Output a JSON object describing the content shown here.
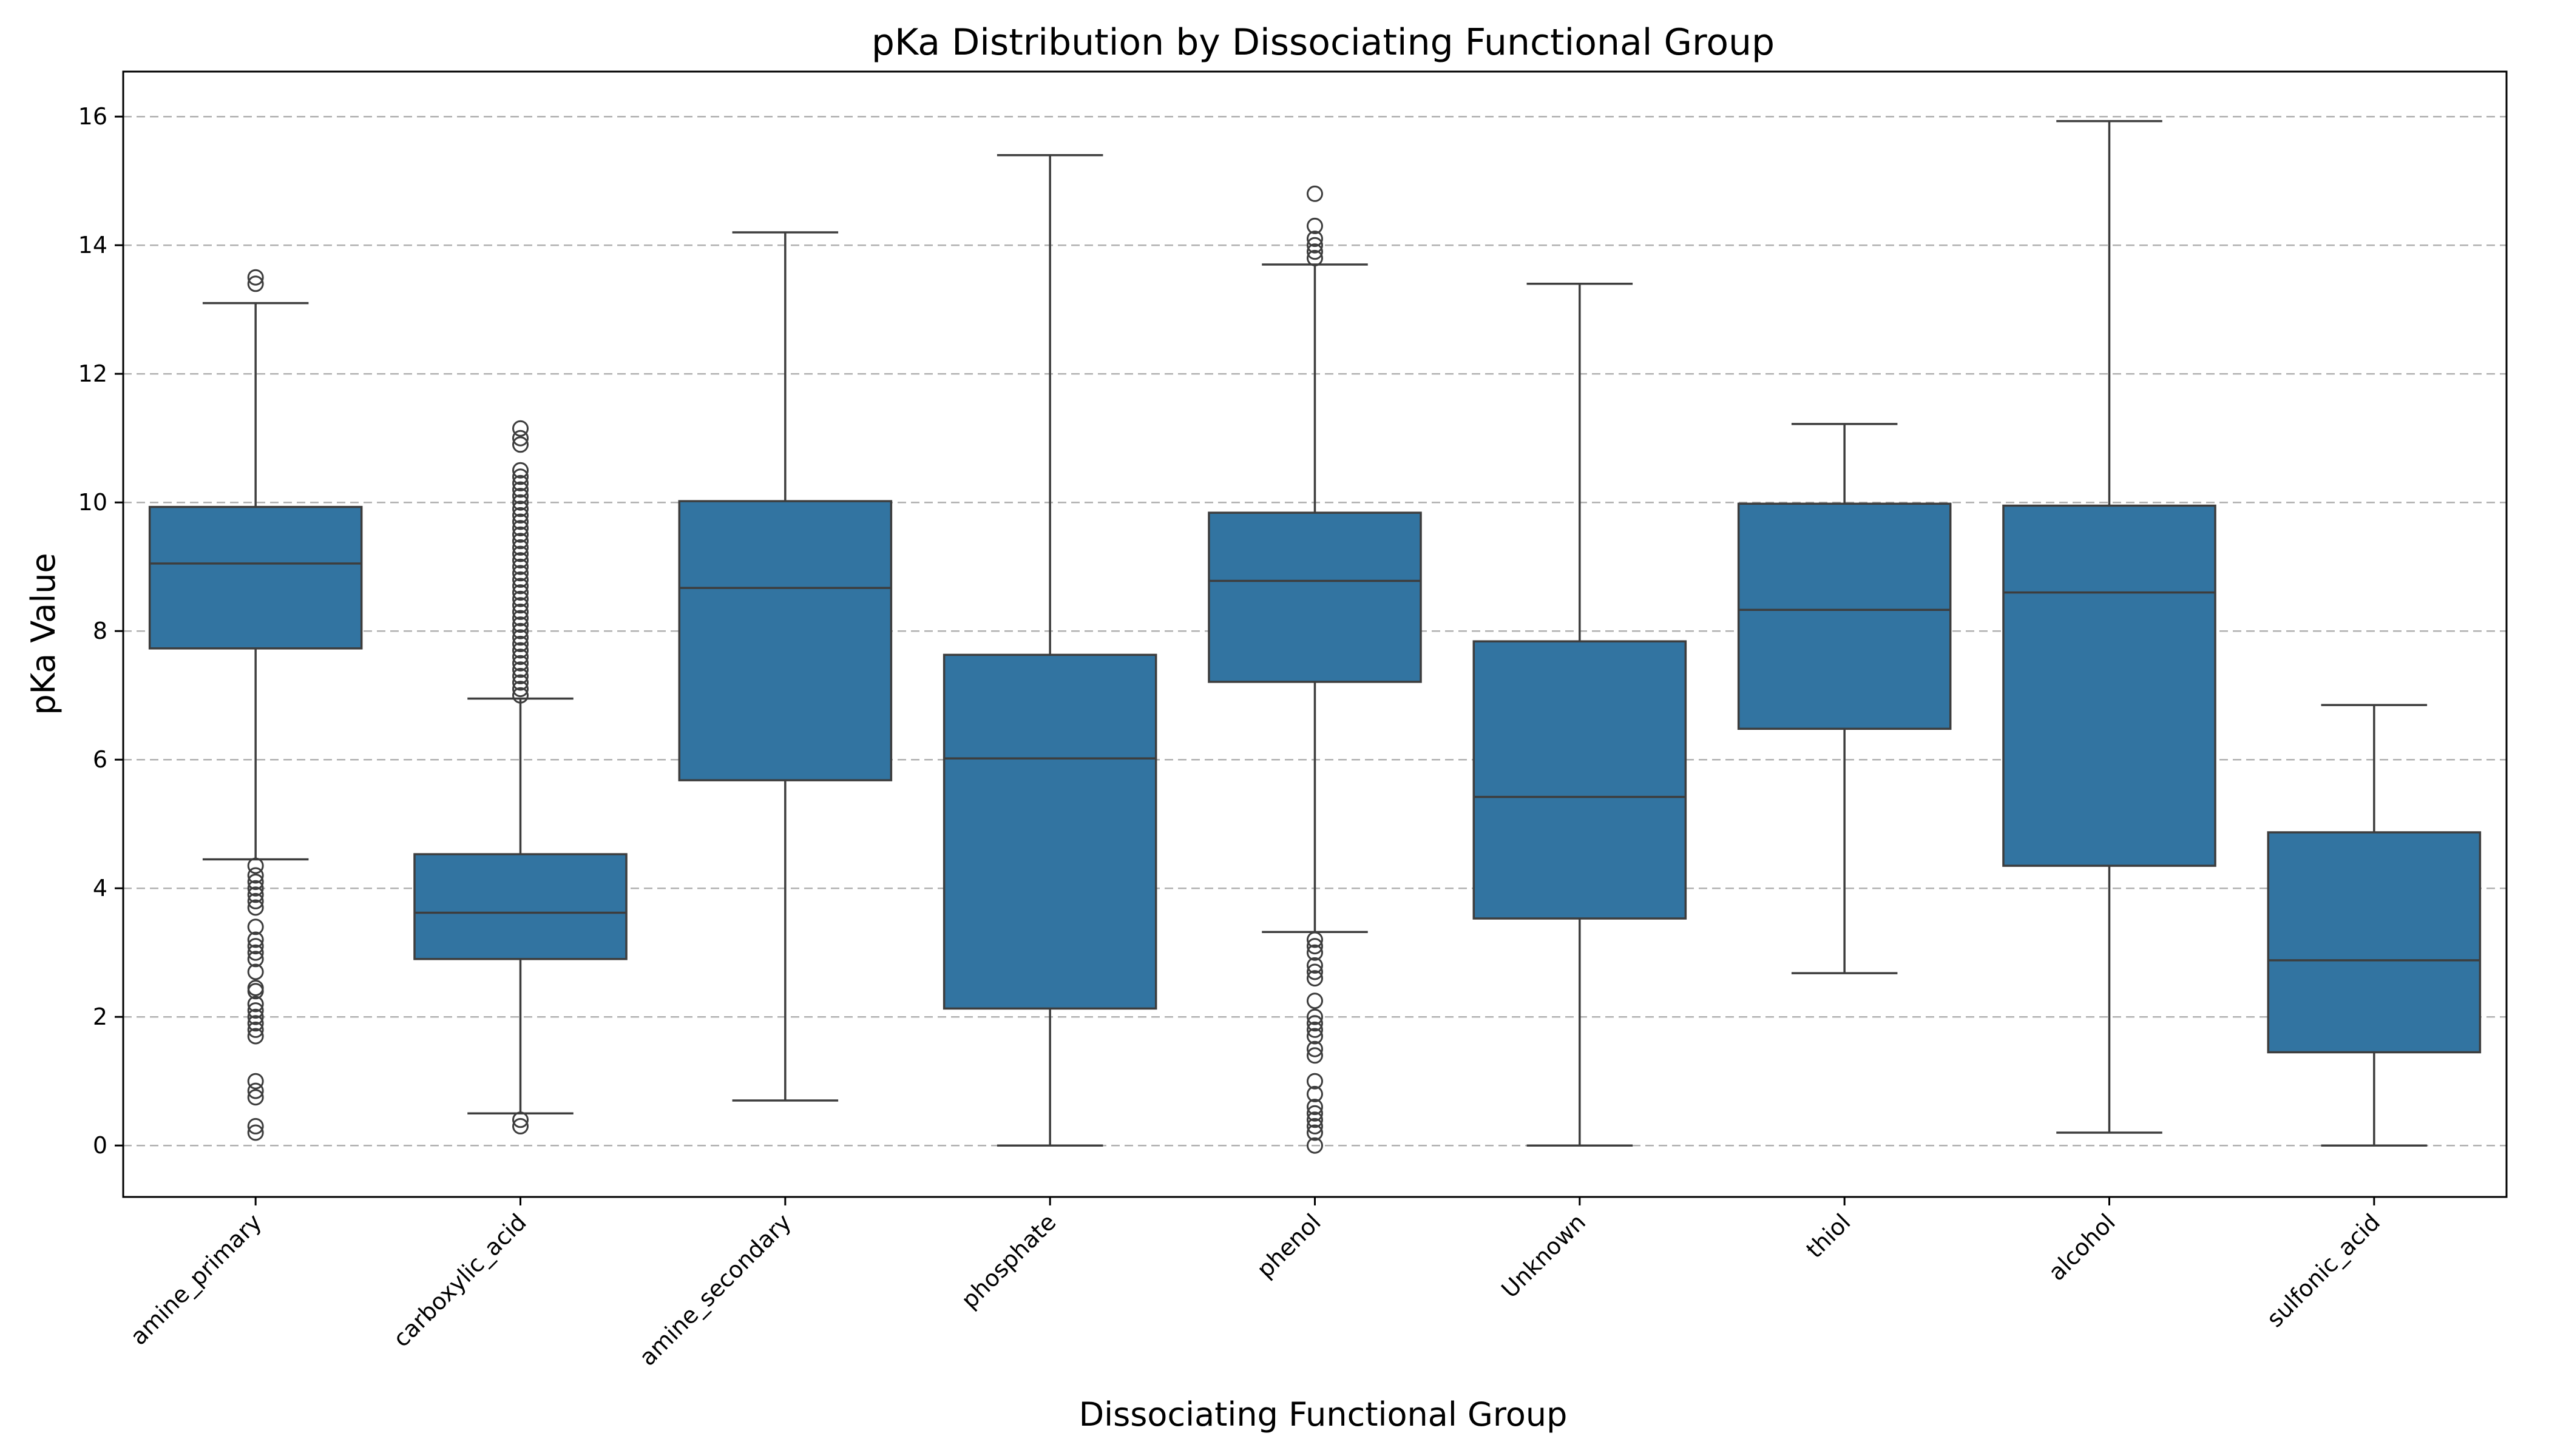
{
  "chart_data": {
    "type": "box",
    "title": "pKa Distribution by Dissociating Functional Group",
    "xlabel": "Dissociating Functional Group",
    "ylabel": "pKa Value",
    "ylim": [
      -0.8,
      16.7
    ],
    "yticks": [
      0,
      2,
      4,
      6,
      8,
      10,
      12,
      14,
      16
    ],
    "grid": "y-dashed",
    "box_color": "#3274a1",
    "categories": [
      "amine_primary",
      "carboxylic_acid",
      "amine_secondary",
      "phosphate",
      "phenol",
      "Unknown",
      "thiol",
      "alcohol",
      "sulfonic_acid"
    ],
    "boxes": [
      {
        "whislo": 4.45,
        "q1": 7.73,
        "med": 9.05,
        "q3": 9.93,
        "whishi": 13.1,
        "fliers": [
          13.4,
          13.5,
          4.35,
          4.2,
          4.1,
          4.0,
          3.9,
          3.8,
          3.7,
          3.4,
          3.2,
          3.1,
          3.0,
          2.9,
          2.7,
          2.45,
          2.4,
          2.2,
          2.1,
          2.0,
          1.9,
          1.8,
          1.7,
          1.0,
          0.85,
          0.75,
          0.3,
          0.2
        ]
      },
      {
        "whislo": 0.5,
        "q1": 2.9,
        "med": 3.62,
        "q3": 4.53,
        "whishi": 6.95,
        "fliers": [
          0.4,
          0.3,
          7.0,
          7.1,
          7.2,
          7.3,
          7.4,
          7.5,
          7.6,
          7.7,
          7.8,
          7.9,
          8.0,
          8.1,
          8.2,
          8.3,
          8.4,
          8.5,
          8.6,
          8.7,
          8.8,
          8.9,
          9.0,
          9.1,
          9.2,
          9.3,
          9.4,
          9.5,
          9.6,
          9.7,
          9.8,
          9.9,
          10.0,
          10.1,
          10.2,
          10.3,
          10.4,
          10.5,
          10.9,
          11.0,
          11.15
        ]
      },
      {
        "whislo": 0.7,
        "q1": 5.68,
        "med": 8.67,
        "q3": 10.02,
        "whishi": 14.2,
        "fliers": []
      },
      {
        "whislo": 0.0,
        "q1": 2.13,
        "med": 6.02,
        "q3": 7.63,
        "whishi": 15.4,
        "fliers": []
      },
      {
        "whislo": 3.32,
        "q1": 7.21,
        "med": 8.78,
        "q3": 9.84,
        "whishi": 13.7,
        "fliers": [
          13.8,
          13.9,
          14.0,
          14.1,
          14.3,
          14.8,
          3.2,
          3.1,
          3.0,
          2.8,
          2.7,
          2.6,
          2.25,
          2.0,
          1.9,
          1.8,
          1.7,
          1.5,
          1.4,
          1.0,
          0.8,
          0.6,
          0.5,
          0.4,
          0.3,
          0.2,
          0.0
        ]
      },
      {
        "whislo": 0.0,
        "q1": 3.53,
        "med": 5.42,
        "q3": 7.84,
        "whishi": 13.4,
        "fliers": []
      },
      {
        "whislo": 2.68,
        "q1": 6.48,
        "med": 8.33,
        "q3": 9.98,
        "whishi": 11.22,
        "fliers": []
      },
      {
        "whislo": 0.2,
        "q1": 4.35,
        "med": 8.6,
        "q3": 9.95,
        "whishi": 15.93,
        "fliers": []
      },
      {
        "whislo": 0.0,
        "q1": 1.45,
        "med": 2.88,
        "q3": 4.87,
        "whishi": 6.85,
        "fliers": []
      }
    ]
  }
}
